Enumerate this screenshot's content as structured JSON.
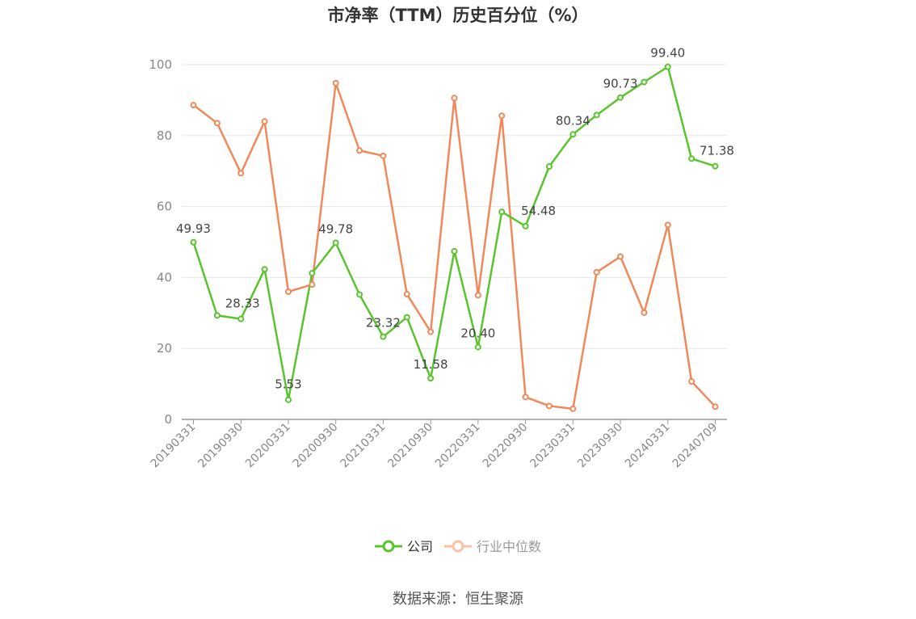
{
  "chart_data": {
    "type": "line",
    "title": "市净率（TTM）历史百分位（%）",
    "ylim": [
      0,
      100
    ],
    "yticks": [
      0,
      20,
      40,
      60,
      80,
      100
    ],
    "x_tick_labels": [
      "20190331",
      "20190930",
      "20200331",
      "20200930",
      "20210331",
      "20210930",
      "20220331",
      "20220930",
      "20230331",
      "20230930",
      "20240331",
      "20240709"
    ],
    "grid": true,
    "legend_position": "bottom-center",
    "series": [
      {
        "name": "公司",
        "color": "#5ac42e",
        "values": [
          49.93,
          29.3,
          28.33,
          42.3,
          5.53,
          41.2,
          49.78,
          35.2,
          23.32,
          28.8,
          11.58,
          47.4,
          20.4,
          58.5,
          54.48,
          71.3,
          80.34,
          85.8,
          90.73,
          95.1,
          99.4,
          73.5,
          71.38
        ],
        "labels": [
          "49.93",
          "",
          "28.33",
          "",
          "5.53",
          "",
          "49.78",
          "",
          "23.32",
          "",
          "11.58",
          "",
          "20.40",
          "",
          "54.48",
          "",
          "80.34",
          "",
          "90.73",
          "",
          "99.40",
          "",
          "71.38"
        ]
      },
      {
        "name": "行业中位数",
        "color": "#f0895a",
        "values": [
          88.6,
          83.5,
          69.4,
          84.0,
          36.0,
          38.0,
          94.8,
          75.8,
          74.3,
          35.3,
          24.7,
          90.6,
          35.0,
          85.6,
          6.3,
          3.8,
          3.0,
          41.5,
          45.9,
          30.1,
          54.8,
          10.7,
          3.6
        ]
      }
    ]
  },
  "source": "数据来源：恒生聚源"
}
